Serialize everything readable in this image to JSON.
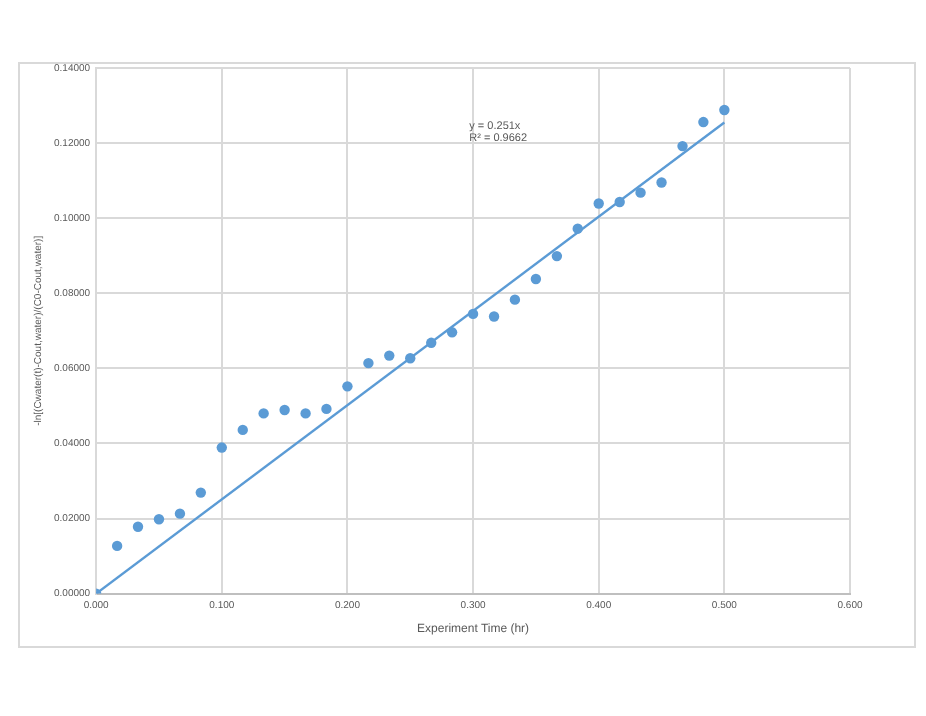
{
  "chart_data": {
    "type": "scatter",
    "xlabel": "Experiment Time (hr)",
    "ylabel": "-ln[(Cwater(t)-Cout,water)/(C0-Cout,water)]",
    "x": [
      0,
      0.0167,
      0.0333,
      0.05,
      0.0667,
      0.0833,
      0.1,
      0.1167,
      0.1333,
      0.15,
      0.1667,
      0.1833,
      0.2,
      0.2167,
      0.2333,
      0.25,
      0.2667,
      0.2833,
      0.3,
      0.3167,
      0.3333,
      0.35,
      0.3667,
      0.3833,
      0.4,
      0.4167,
      0.4333,
      0.45,
      0.4667,
      0.4833,
      0.5
    ],
    "series": [
      {
        "color": "#5b9bd5",
        "marker": "circle",
        "values": [
          0,
          0.0127,
          0.0178,
          0.0198,
          0.0213,
          0.0269,
          0.0389,
          0.0436,
          0.048,
          0.0489,
          0.048,
          0.0492,
          0.0552,
          0.0614,
          0.0634,
          0.0627,
          0.0668,
          0.0696,
          0.0745,
          0.0738,
          0.0783,
          0.0838,
          0.0899,
          0.0972,
          0.1039,
          0.1043,
          0.1068,
          0.1095,
          0.1192,
          0.1256,
          0.1288
        ]
      },
      {
        "type": "line",
        "color": "#5b9bd5",
        "marker": "none",
        "x": [
          0,
          0.5
        ],
        "values": [
          0,
          0.1255
        ]
      }
    ],
    "xlim": [
      0,
      0.6
    ],
    "xticks": [
      {
        "value": 0,
        "label": "0.000"
      },
      {
        "value": 0.1,
        "label": "0.100"
      },
      {
        "value": 0.2,
        "label": "0.200"
      },
      {
        "value": 0.3,
        "label": "0.300"
      },
      {
        "value": 0.4,
        "label": "0.400"
      },
      {
        "value": 0.5,
        "label": "0.500"
      },
      {
        "value": 0.6,
        "label": "0.600"
      }
    ],
    "ylim": [
      0,
      0.14
    ],
    "yticks": [
      {
        "value": 0,
        "label": "0.00000"
      },
      {
        "value": 0.02,
        "label": "0.02000"
      },
      {
        "value": 0.04,
        "label": "0.04000"
      },
      {
        "value": 0.06,
        "label": "0.06000"
      },
      {
        "value": 0.08,
        "label": "0.08000"
      },
      {
        "value": 0.1,
        "label": "0.10000"
      },
      {
        "value": 0.12,
        "label": "0.12000"
      },
      {
        "value": 0.14,
        "label": "0.14000"
      }
    ],
    "grid": true,
    "legend": false,
    "annotations": [
      "y = 0.251x",
      "R² = 0.9662"
    ]
  }
}
